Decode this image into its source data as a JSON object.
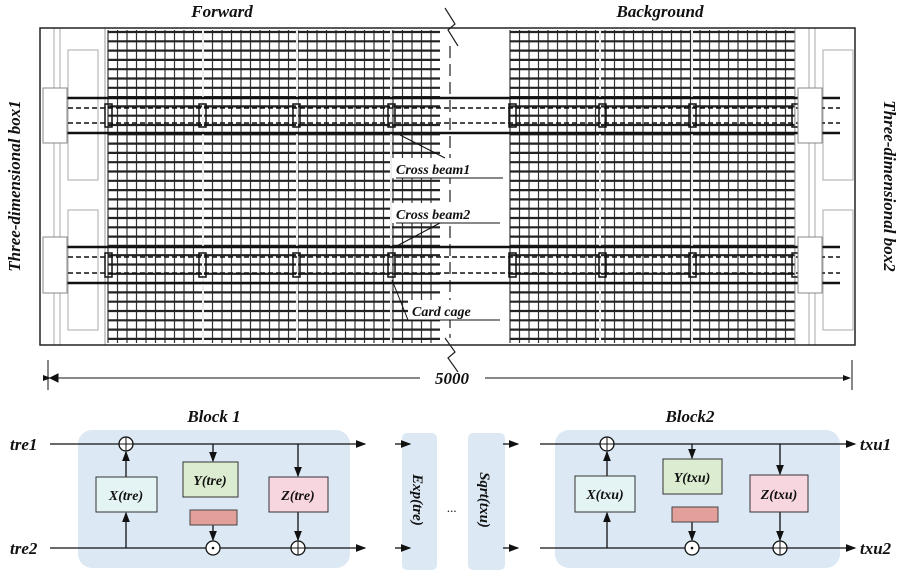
{
  "top": {
    "forward_label": "Forward",
    "background_label": "Background",
    "box1_label": "Three-dimensional box1",
    "box2_label": "Three-dimensional box2",
    "cross_beam1": "Cross beam1",
    "cross_beam2": "Cross beam2",
    "card_cage": "Card cage",
    "dimension": "5000"
  },
  "bottom": {
    "block1": {
      "title": "Block 1",
      "input1": "tre1",
      "input2": "tre2",
      "x": "X(tre)",
      "y": "Y(tre)",
      "z": "Z(tre)"
    },
    "exp": "Exp(tre)",
    "ellipsis": "...",
    "sqrt": "Sqrt(txu)",
    "block2": {
      "title": "Block2",
      "output1": "txu1",
      "output2": "txu2",
      "x": "X(txu)",
      "y": "Y(txu)",
      "z": "Z(txu)"
    }
  },
  "colors": {
    "block_bg": "#dce8f4",
    "x_box": "#e4f3f3",
    "y_box": "#dcecd0",
    "z_box": "#f8d6e0",
    "pink_bar": "#e3a09a"
  }
}
